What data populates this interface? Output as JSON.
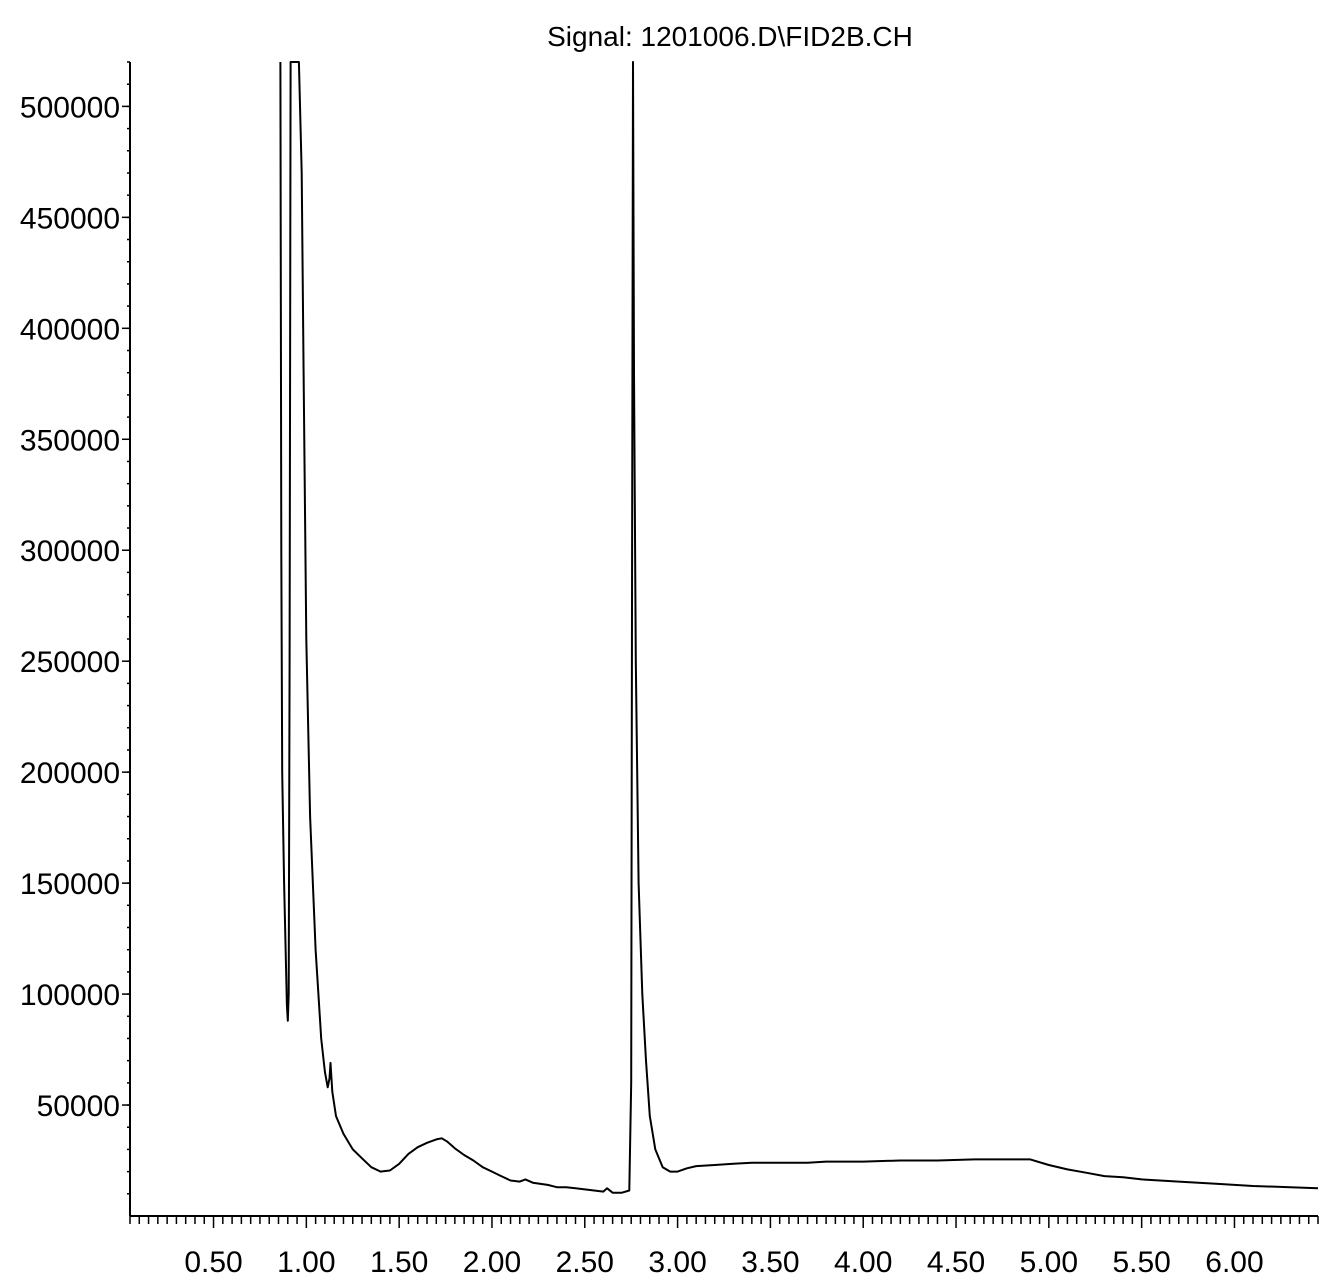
{
  "chart_data": {
    "type": "line",
    "title": "Signal: 1201006.D\\FID2B.CH",
    "xlabel": "",
    "ylabel": "",
    "xlim": [
      0.05,
      6.45
    ],
    "ylim": [
      0,
      520000
    ],
    "x_ticks": [
      0.5,
      1.0,
      1.5,
      2.0,
      2.5,
      3.0,
      3.5,
      4.0,
      4.5,
      5.0,
      5.5,
      6.0
    ],
    "x_tick_labels": [
      "0.50",
      "1.00",
      "1.50",
      "2.00",
      "2.50",
      "3.00",
      "3.50",
      "4.00",
      "4.50",
      "5.00",
      "5.50",
      "6.00"
    ],
    "y_ticks": [
      50000,
      100000,
      150000,
      200000,
      250000,
      300000,
      350000,
      400000,
      450000,
      500000
    ],
    "y_tick_labels": [
      "50000",
      "100000",
      "150000",
      "200000",
      "250000",
      "300000",
      "350000",
      "400000",
      "450000",
      "500000"
    ],
    "grid": false,
    "series": [
      {
        "values_xy": [
          [
            0.86,
            520000
          ],
          [
            0.865,
            300000
          ],
          [
            0.87,
            200000
          ],
          [
            0.88,
            150000
          ],
          [
            0.895,
            95000
          ],
          [
            0.9,
            88000
          ],
          [
            0.905,
            100000
          ],
          [
            0.91,
            250000
          ],
          [
            0.915,
            520000
          ],
          [
            0.96,
            520000
          ],
          [
            0.975,
            470000
          ],
          [
            0.985,
            380000
          ],
          [
            1.0,
            260000
          ],
          [
            1.02,
            180000
          ],
          [
            1.05,
            120000
          ],
          [
            1.08,
            80000
          ],
          [
            1.1,
            65000
          ],
          [
            1.115,
            58000
          ],
          [
            1.125,
            62000
          ],
          [
            1.13,
            69000
          ],
          [
            1.14,
            56000
          ],
          [
            1.16,
            45000
          ],
          [
            1.2,
            37000
          ],
          [
            1.25,
            30000
          ],
          [
            1.3,
            26000
          ],
          [
            1.35,
            22000
          ],
          [
            1.4,
            20000
          ],
          [
            1.45,
            20500
          ],
          [
            1.5,
            23500
          ],
          [
            1.55,
            28000
          ],
          [
            1.6,
            31000
          ],
          [
            1.65,
            33000
          ],
          [
            1.7,
            34500
          ],
          [
            1.73,
            35000
          ],
          [
            1.76,
            33500
          ],
          [
            1.8,
            30500
          ],
          [
            1.85,
            27500
          ],
          [
            1.9,
            25000
          ],
          [
            1.95,
            22000
          ],
          [
            2.0,
            20000
          ],
          [
            2.05,
            18000
          ],
          [
            2.1,
            16000
          ],
          [
            2.15,
            15500
          ],
          [
            2.18,
            16500
          ],
          [
            2.22,
            15000
          ],
          [
            2.3,
            14000
          ],
          [
            2.35,
            13000
          ],
          [
            2.4,
            13000
          ],
          [
            2.45,
            12500
          ],
          [
            2.5,
            12000
          ],
          [
            2.55,
            11500
          ],
          [
            2.6,
            11000
          ],
          [
            2.62,
            12500
          ],
          [
            2.65,
            10500
          ],
          [
            2.7,
            10500
          ],
          [
            2.74,
            11500
          ],
          [
            2.75,
            60000
          ],
          [
            2.755,
            300000
          ],
          [
            2.76,
            520000
          ],
          [
            2.765,
            380000
          ],
          [
            2.775,
            250000
          ],
          [
            2.79,
            150000
          ],
          [
            2.81,
            100000
          ],
          [
            2.83,
            70000
          ],
          [
            2.85,
            45000
          ],
          [
            2.88,
            30000
          ],
          [
            2.92,
            22000
          ],
          [
            2.96,
            20000
          ],
          [
            3.0,
            20000
          ],
          [
            3.05,
            21500
          ],
          [
            3.1,
            22500
          ],
          [
            3.2,
            23000
          ],
          [
            3.3,
            23500
          ],
          [
            3.4,
            24000
          ],
          [
            3.5,
            24000
          ],
          [
            3.6,
            24000
          ],
          [
            3.7,
            24000
          ],
          [
            3.8,
            24500
          ],
          [
            3.9,
            24500
          ],
          [
            4.0,
            24500
          ],
          [
            4.2,
            25000
          ],
          [
            4.4,
            25000
          ],
          [
            4.6,
            25500
          ],
          [
            4.8,
            25500
          ],
          [
            4.9,
            25500
          ],
          [
            5.0,
            23000
          ],
          [
            5.1,
            21000
          ],
          [
            5.2,
            19500
          ],
          [
            5.3,
            18000
          ],
          [
            5.4,
            17500
          ],
          [
            5.5,
            16500
          ],
          [
            5.7,
            15500
          ],
          [
            5.9,
            14500
          ],
          [
            6.1,
            13500
          ],
          [
            6.3,
            13000
          ],
          [
            6.45,
            12500
          ]
        ]
      }
    ]
  }
}
